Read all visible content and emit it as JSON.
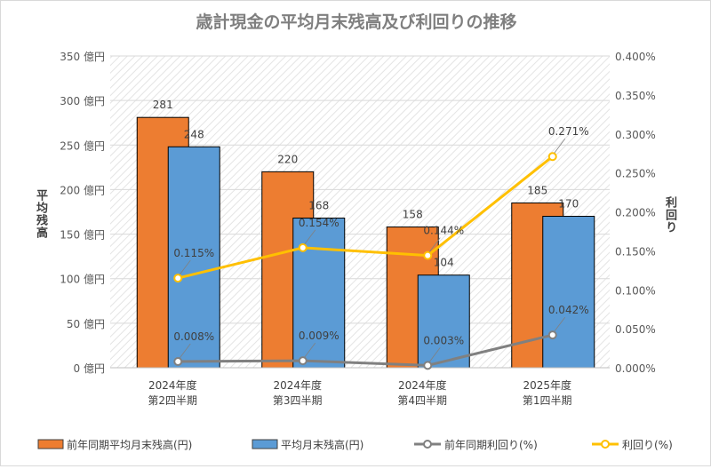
{
  "chart_data": {
    "type": "bar+line",
    "title": "歳計現金の平均月末残高及び利回りの推移",
    "ylabel_left": "平均残高",
    "ylabel_right": "利回り",
    "ylim_left": [
      0,
      350
    ],
    "ylim_right": [
      0,
      0.4
    ],
    "yticks_left": [
      "0 億円",
      "50 億円",
      "100 億円",
      "150 億円",
      "200 億円",
      "250 億円",
      "300 億円",
      "350 億円"
    ],
    "yticks_right": [
      "0.000%",
      "0.050%",
      "0.100%",
      "0.150%",
      "0.200%",
      "0.250%",
      "0.300%",
      "0.350%",
      "0.400%"
    ],
    "categories": [
      [
        "2024年度",
        "第2四半期"
      ],
      [
        "2024年度",
        "第3四半期"
      ],
      [
        "2024年度",
        "第4四半期"
      ],
      [
        "2025年度",
        "第1四半期"
      ]
    ],
    "bar_series": [
      {
        "name": "前年同期平均月末残高(円)",
        "values": [
          281,
          220,
          158,
          185
        ],
        "color": "#ed7d31"
      },
      {
        "name": "平均月末残高(円)",
        "values": [
          248,
          168,
          104,
          170
        ],
        "color": "#5b9bd5"
      }
    ],
    "line_series": [
      {
        "name": "前年同期利回り(%)",
        "values": [
          0.008,
          0.009,
          0.003,
          0.042
        ],
        "labels": [
          "0.008%",
          "0.009%",
          "0.003%",
          "0.042%"
        ],
        "color": "#808080"
      },
      {
        "name": "利回り(%)",
        "values": [
          0.115,
          0.154,
          0.144,
          0.271
        ],
        "labels": [
          "0.115%",
          "0.154%",
          "0.144%",
          "0.271%"
        ],
        "color": "#ffc000"
      }
    ],
    "grid": true,
    "legend": "bottom"
  }
}
